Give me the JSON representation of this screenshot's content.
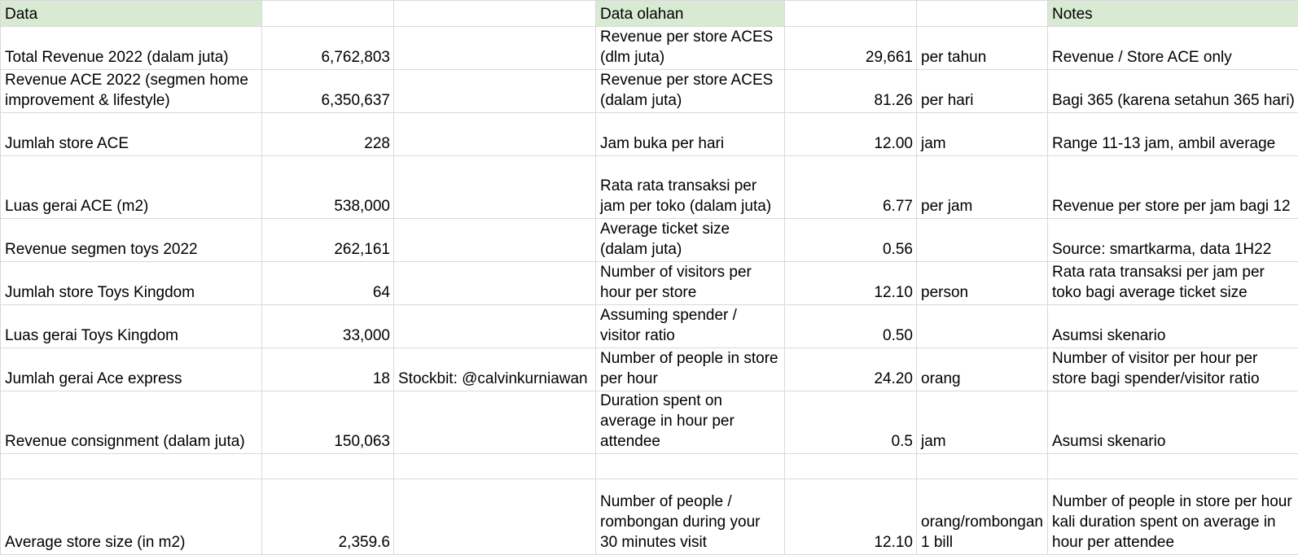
{
  "sheet": {
    "headers": [
      "Data",
      "",
      "",
      "Data olahan",
      "",
      "",
      "Notes"
    ],
    "header_fill": [
      true,
      false,
      false,
      true,
      false,
      false,
      true
    ],
    "rows": [
      [
        "Total Revenue 2022 (dalam juta)",
        "6,762,803",
        "",
        "Revenue per store ACES (dlm juta)",
        "29,661",
        "per tahun",
        "Revenue / Store ACE only"
      ],
      [
        "Revenue ACE 2022 (segmen home improvement & lifestyle)",
        "6,350,637",
        "",
        "Revenue per store ACES (dalam juta)",
        "81.26",
        "per hari",
        "Bagi 365 (karena setahun 365 hari)"
      ],
      [
        "Jumlah store ACE",
        "228",
        "",
        "Jam buka per hari",
        "12.00",
        "jam",
        "Range 11-13 jam, ambil average"
      ],
      [
        "Luas gerai ACE (m2)",
        "538,000",
        "",
        "Rata rata transaksi per jam per toko (dalam juta)",
        "6.77",
        "per jam",
        "Revenue per store per jam bagi 12"
      ],
      [
        "Revenue segmen toys 2022",
        "262,161",
        "",
        "Average ticket size (dalam juta)",
        "0.56",
        "",
        "Source: smartkarma, data 1H22"
      ],
      [
        "Jumlah store Toys Kingdom",
        "64",
        "",
        "Number of visitors per hour per store",
        "12.10",
        "person",
        "Rata rata transaksi per jam per toko bagi average ticket size"
      ],
      [
        "Luas gerai Toys Kingdom",
        "33,000",
        "",
        "Assuming spender / visitor ratio",
        "0.50",
        "",
        "Asumsi skenario"
      ],
      [
        "Jumlah gerai Ace express",
        "18",
        "Stockbit: @calvinkurniawan",
        "Number of people in store per hour",
        "24.20",
        "orang",
        "Number of visitor per hour per store bagi spender/visitor ratio"
      ],
      [
        "Revenue consignment (dalam juta)",
        "150,063",
        "",
        "Duration spent on average in hour per attendee",
        "0.5",
        "jam",
        "Asumsi skenario"
      ],
      [
        "",
        "",
        "",
        "",
        "",
        "",
        ""
      ],
      [
        "Average store size (in m2)",
        "2,359.6",
        "",
        "Number of people / rombongan during your 30 minutes visit",
        "12.10",
        "orang/rombongan 1 bill",
        "Number of people in store per hour kali duration spent on average in hour per attendee"
      ]
    ],
    "numeric_columns": [
      1,
      4
    ],
    "colors": {
      "header_fill": "#d9ead3",
      "gridline": "#d9d9d9",
      "text": "#000000"
    }
  }
}
